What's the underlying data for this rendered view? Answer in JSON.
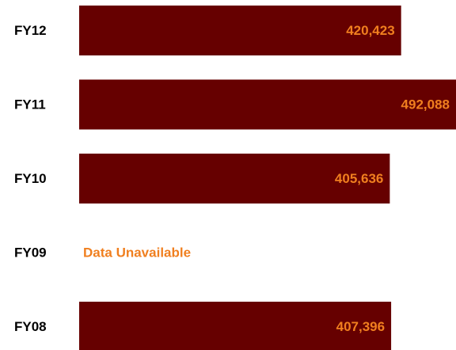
{
  "chart_data": {
    "type": "bar",
    "orientation": "horizontal",
    "categories": [
      "FY12",
      "FY11",
      "FY10",
      "FY09",
      "FY08"
    ],
    "values": [
      420423,
      492088,
      405636,
      null,
      407396
    ],
    "value_labels": [
      "420,423",
      "492,088",
      "405,636",
      null,
      "407,396"
    ],
    "annotations": [
      {
        "category": "FY09",
        "text": "Data Unavailable"
      }
    ],
    "color": "#660000",
    "label_color": "#f07f1f"
  }
}
